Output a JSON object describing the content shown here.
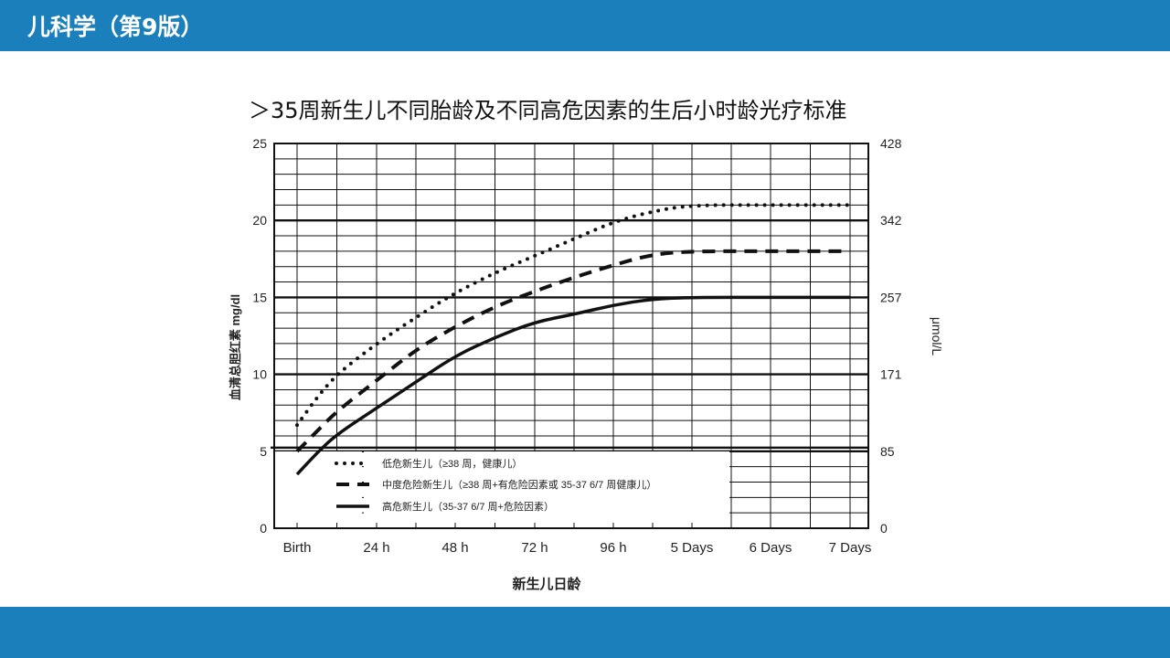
{
  "header": {
    "title": "儿科学（第9版）"
  },
  "slide": {
    "title": "＞35周新生儿不同胎龄及不同高危因素的生后小时龄光疗标准"
  },
  "colors": {
    "bar": "#1a7fba"
  },
  "chart_data": {
    "type": "line",
    "title": "＞35周新生儿不同胎龄及不同高危因素的生后小时龄光疗标准",
    "xlabel": "新生儿日龄",
    "ylabel": "血清总胆红素 mg/dl",
    "ylabel_right": "μmol/L",
    "x_ticks": [
      "Birth",
      "24 h",
      "48 h",
      "72 h",
      "96 h",
      "5 Days",
      "6 Days",
      "7 Days"
    ],
    "y_ticks_left": [
      "0",
      "5",
      "10",
      "15",
      "20",
      "25"
    ],
    "y_ticks_right": [
      "0",
      "85",
      "171",
      "257",
      "342",
      "428"
    ],
    "ylim": [
      0,
      25
    ],
    "grid": true,
    "legend_position": "bottom-left",
    "series": [
      {
        "name": "低危新生儿（≥38 周，健康儿）",
        "style": "dotted",
        "x": [
          0,
          6,
          12,
          24,
          36,
          48,
          60,
          72,
          84,
          96,
          108,
          120,
          144,
          168
        ],
        "y": [
          6.7,
          8.5,
          10.0,
          12.0,
          13.7,
          15.3,
          16.6,
          17.7,
          18.8,
          19.9,
          20.6,
          21.0,
          21.0,
          21.0
        ]
      },
      {
        "name": "中度危险新生儿（≥38 周+有危险因素或 35-37 6/7 周健康儿）",
        "style": "dashed",
        "x": [
          0,
          6,
          12,
          24,
          36,
          48,
          60,
          72,
          84,
          96,
          108,
          120,
          144,
          168
        ],
        "y": [
          5.0,
          6.3,
          7.6,
          9.6,
          11.6,
          13.1,
          14.4,
          15.4,
          16.3,
          17.1,
          17.8,
          18.0,
          18.0,
          18.0
        ]
      },
      {
        "name": "高危新生儿（35-37 6/7 周+危险因素）",
        "style": "solid",
        "x": [
          0,
          6,
          12,
          24,
          36,
          48,
          60,
          72,
          84,
          96,
          108,
          120,
          144,
          168
        ],
        "y": [
          3.5,
          4.9,
          6.1,
          7.8,
          9.5,
          11.2,
          12.4,
          13.4,
          13.9,
          14.5,
          14.9,
          15.0,
          15.0,
          15.0
        ]
      }
    ]
  }
}
